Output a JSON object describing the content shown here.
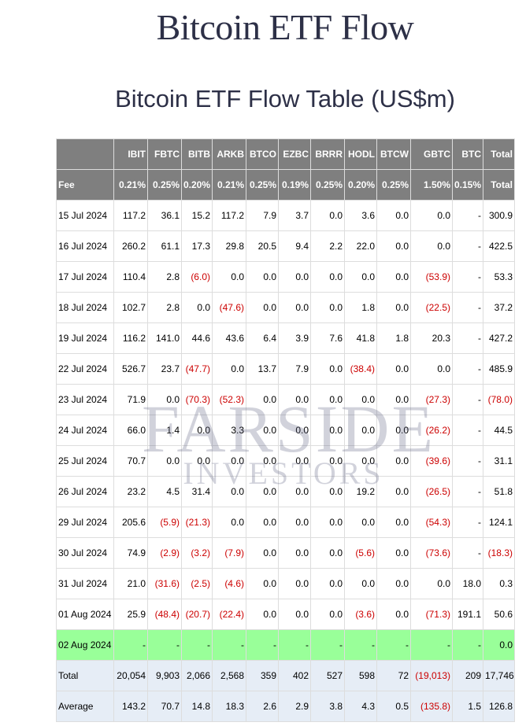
{
  "page": {
    "title": "Bitcoin ETF Flow",
    "table_title": "Bitcoin ETF Flow Table (US$m)"
  },
  "watermark": {
    "main": "FARSIDE",
    "sub": "INVESTORS"
  },
  "table": {
    "header": [
      "",
      "IBIT",
      "FBTC",
      "BITB",
      "ARKB",
      "BTCO",
      "EZBC",
      "BRRR",
      "HODL",
      "BTCW",
      "GBTC",
      "BTC",
      "Total"
    ],
    "fee": [
      "Fee",
      "0.21%",
      "0.25%",
      "0.20%",
      "0.21%",
      "0.25%",
      "0.19%",
      "0.25%",
      "0.20%",
      "0.25%",
      "1.50%",
      "0.15%",
      "Total"
    ],
    "rows": [
      [
        "15 Jul 2024",
        "117.2",
        "36.1",
        "15.2",
        "117.2",
        "7.9",
        "3.7",
        "0.0",
        "3.6",
        "0.0",
        "0.0",
        "-",
        "300.9"
      ],
      [
        "16 Jul 2024",
        "260.2",
        "61.1",
        "17.3",
        "29.8",
        "20.5",
        "9.4",
        "2.2",
        "22.0",
        "0.0",
        "0.0",
        "-",
        "422.5"
      ],
      [
        "17 Jul 2024",
        "110.4",
        "2.8",
        "(6.0)",
        "0.0",
        "0.0",
        "0.0",
        "0.0",
        "0.0",
        "0.0",
        "(53.9)",
        "-",
        "53.3"
      ],
      [
        "18 Jul 2024",
        "102.7",
        "2.8",
        "0.0",
        "(47.6)",
        "0.0",
        "0.0",
        "0.0",
        "1.8",
        "0.0",
        "(22.5)",
        "-",
        "37.2"
      ],
      [
        "19 Jul 2024",
        "116.2",
        "141.0",
        "44.6",
        "43.6",
        "6.4",
        "3.9",
        "7.6",
        "41.8",
        "1.8",
        "20.3",
        "-",
        "427.2"
      ],
      [
        "22 Jul 2024",
        "526.7",
        "23.7",
        "(47.7)",
        "0.0",
        "13.7",
        "7.9",
        "0.0",
        "(38.4)",
        "0.0",
        "0.0",
        "-",
        "485.9"
      ],
      [
        "23 Jul 2024",
        "71.9",
        "0.0",
        "(70.3)",
        "(52.3)",
        "0.0",
        "0.0",
        "0.0",
        "0.0",
        "0.0",
        "(27.3)",
        "-",
        "(78.0)"
      ],
      [
        "24 Jul 2024",
        "66.0",
        "1.4",
        "0.0",
        "3.3",
        "0.0",
        "0.0",
        "0.0",
        "0.0",
        "0.0",
        "(26.2)",
        "-",
        "44.5"
      ],
      [
        "25 Jul 2024",
        "70.7",
        "0.0",
        "0.0",
        "0.0",
        "0.0",
        "0.0",
        "0.0",
        "0.0",
        "0.0",
        "(39.6)",
        "-",
        "31.1"
      ],
      [
        "26 Jul 2024",
        "23.2",
        "4.5",
        "31.4",
        "0.0",
        "0.0",
        "0.0",
        "0.0",
        "19.2",
        "0.0",
        "(26.5)",
        "-",
        "51.8"
      ],
      [
        "29 Jul 2024",
        "205.6",
        "(5.9)",
        "(21.3)",
        "0.0",
        "0.0",
        "0.0",
        "0.0",
        "0.0",
        "0.0",
        "(54.3)",
        "-",
        "124.1"
      ],
      [
        "30 Jul 2024",
        "74.9",
        "(2.9)",
        "(3.2)",
        "(7.9)",
        "0.0",
        "0.0",
        "0.0",
        "(5.6)",
        "0.0",
        "(73.6)",
        "-",
        "(18.3)"
      ],
      [
        "31 Jul 2024",
        "21.0",
        "(31.6)",
        "(2.5)",
        "(4.6)",
        "0.0",
        "0.0",
        "0.0",
        "0.0",
        "0.0",
        "0.0",
        "18.0",
        "0.3"
      ],
      [
        "01 Aug 2024",
        "25.9",
        "(48.4)",
        "(20.7)",
        "(22.4)",
        "0.0",
        "0.0",
        "0.0",
        "(3.6)",
        "0.0",
        "(71.3)",
        "191.1",
        "50.6"
      ],
      [
        "02 Aug 2024",
        "-",
        "-",
        "-",
        "-",
        "-",
        "-",
        "-",
        "-",
        "-",
        "-",
        "-",
        "0.0"
      ]
    ],
    "highlight_row_index": 14,
    "total": [
      "Total",
      "20,054",
      "9,903",
      "2,066",
      "2,568",
      "359",
      "402",
      "527",
      "598",
      "72",
      "(19,013)",
      "209",
      "17,746"
    ],
    "average": [
      "Average",
      "143.2",
      "70.7",
      "14.8",
      "18.3",
      "2.6",
      "2.9",
      "3.8",
      "4.3",
      "0.5",
      "(135.8)",
      "1.5",
      "126.8"
    ]
  },
  "colors": {
    "header_bg": "#7f7f7f",
    "negative": "#cc0000",
    "highlight_row": "#99ff99",
    "total_row": "#e6edf6"
  }
}
